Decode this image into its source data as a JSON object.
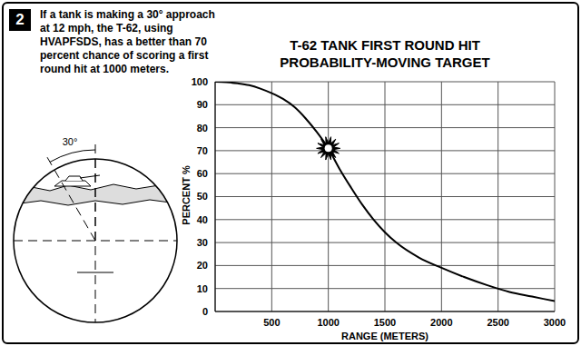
{
  "chart_data": {
    "type": "line",
    "title": "T-62 TANK FIRST ROUND HIT\nPROBABILITY-MOVING TARGET",
    "x_label": "RANGE (METERS)",
    "y_label": "PERCENT %",
    "x": [
      0,
      100,
      200,
      300,
      400,
      500,
      600,
      700,
      800,
      900,
      1000,
      1100,
      1200,
      1300,
      1400,
      1500,
      1600,
      1800,
      2000,
      2200,
      2400,
      2600,
      2800,
      3000
    ],
    "values": [
      100,
      99.8,
      99.3,
      98.5,
      97,
      95,
      92.5,
      89,
      84,
      78,
      71,
      62,
      54,
      46.5,
      40,
      34.5,
      30,
      23.5,
      19,
      15,
      11.5,
      8.5,
      6.5,
      4.5
    ],
    "color": "#000000",
    "xlim": [
      0,
      3000
    ],
    "xticks": [
      500,
      1000,
      1500,
      2000,
      2500,
      3000
    ],
    "ylim": [
      0,
      100
    ],
    "yticks": [
      0,
      10,
      20,
      30,
      40,
      50,
      60,
      70,
      80,
      90,
      100
    ],
    "grid": true,
    "marked_point": {
      "x": 1000,
      "y": 71
    }
  },
  "panel": {
    "number": "2",
    "caption": "If a tank is making a 30° approach\nat 12 mph, the T-62, using\nHVAPFSDS, has a better than 70\npercent chance of scoring a first\nround hit at 1000 meters.",
    "sight_label": "30°"
  }
}
